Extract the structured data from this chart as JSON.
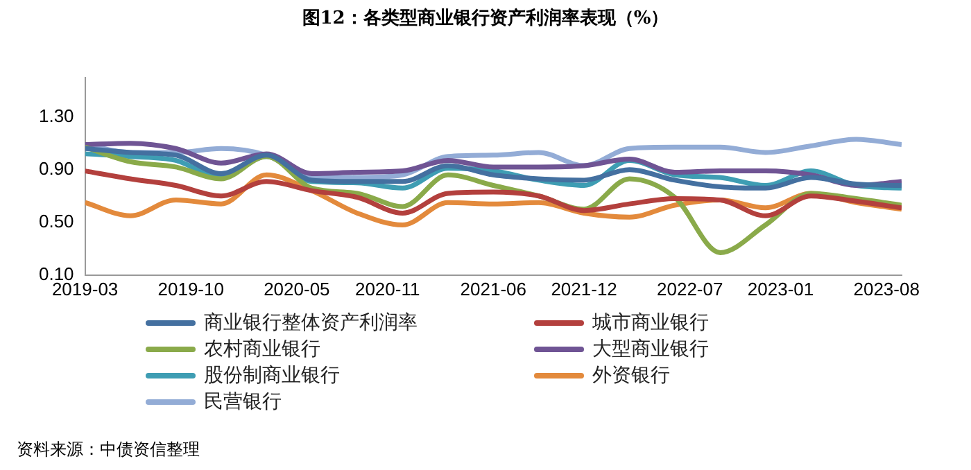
{
  "chart_data": {
    "type": "line",
    "title": "图12：各类型商业银行资产利润率表现（%）",
    "x": [
      "2019-03",
      "2019-06",
      "2019-09",
      "2019-12",
      "2020-03",
      "2020-06",
      "2020-09",
      "2020-12",
      "2021-03",
      "2021-06",
      "2021-09",
      "2021-12",
      "2022-03",
      "2022-06",
      "2022-09",
      "2022-12",
      "2023-03",
      "2023-06",
      "2023-09"
    ],
    "xlim": [
      "2019-03",
      "2023-09"
    ],
    "xticks": [
      "2019-03",
      "2019-10",
      "2020-05",
      "2020-11",
      "2021-06",
      "2021-12",
      "2022-07",
      "2023-01",
      "2023-08"
    ],
    "ylim": [
      0.1,
      1.6
    ],
    "yticks": [
      {
        "value": 0.1,
        "label": "0.10"
      },
      {
        "value": 0.5,
        "label": "0.50"
      },
      {
        "value": 0.9,
        "label": "0.90"
      },
      {
        "value": 1.3,
        "label": "1.30"
      }
    ],
    "series": [
      {
        "name": "商业银行整体资产利润率",
        "color": "#4470a0",
        "values": [
          1.06,
          1.03,
          1.01,
          0.87,
          1.01,
          0.82,
          0.81,
          0.81,
          0.93,
          0.86,
          0.83,
          0.82,
          0.9,
          0.82,
          0.77,
          0.76,
          0.84,
          0.79,
          0.78
        ]
      },
      {
        "name": "城市商业银行",
        "color": "#b3403d",
        "values": [
          0.89,
          0.83,
          0.78,
          0.7,
          0.81,
          0.74,
          0.69,
          0.57,
          0.72,
          0.73,
          0.7,
          0.59,
          0.64,
          0.68,
          0.67,
          0.55,
          0.7,
          0.66,
          0.61
        ]
      },
      {
        "name": "农村商业银行",
        "color": "#8aaa4a",
        "values": [
          1.07,
          0.96,
          0.92,
          0.83,
          1.0,
          0.76,
          0.72,
          0.62,
          0.86,
          0.78,
          0.7,
          0.6,
          0.83,
          0.69,
          0.27,
          0.48,
          0.72,
          0.68,
          0.63
        ]
      },
      {
        "name": "大型商业银行",
        "color": "#6f5494",
        "values": [
          1.09,
          1.1,
          1.06,
          0.95,
          1.02,
          0.87,
          0.88,
          0.89,
          0.97,
          0.92,
          0.92,
          0.93,
          0.98,
          0.88,
          0.89,
          0.89,
          0.86,
          0.78,
          0.81
        ]
      },
      {
        "name": "股份制商业银行",
        "color": "#3e9db3",
        "values": [
          1.02,
          1.0,
          0.97,
          0.84,
          1.0,
          0.81,
          0.8,
          0.76,
          0.91,
          0.89,
          0.82,
          0.78,
          0.97,
          0.86,
          0.84,
          0.78,
          0.89,
          0.78,
          0.76
        ]
      },
      {
        "name": "外资银行",
        "color": "#e38a3c",
        "values": [
          0.65,
          0.55,
          0.67,
          0.64,
          0.86,
          0.74,
          0.57,
          0.48,
          0.65,
          0.64,
          0.65,
          0.57,
          0.54,
          0.63,
          0.67,
          0.61,
          0.72,
          0.65,
          0.6
        ]
      },
      {
        "name": "民营银行",
        "color": "#93acd6",
        "values": [
          1.09,
          1.03,
          1.03,
          1.06,
          1.01,
          0.84,
          0.84,
          0.86,
          1.0,
          1.01,
          1.03,
          0.93,
          1.06,
          1.07,
          1.07,
          1.03,
          1.08,
          1.13,
          1.09
        ]
      }
    ],
    "grid": false,
    "legend": "bottom",
    "marker": "none",
    "line_style": "solid",
    "annotations": [
      "资料来源：中债资信整理"
    ]
  }
}
